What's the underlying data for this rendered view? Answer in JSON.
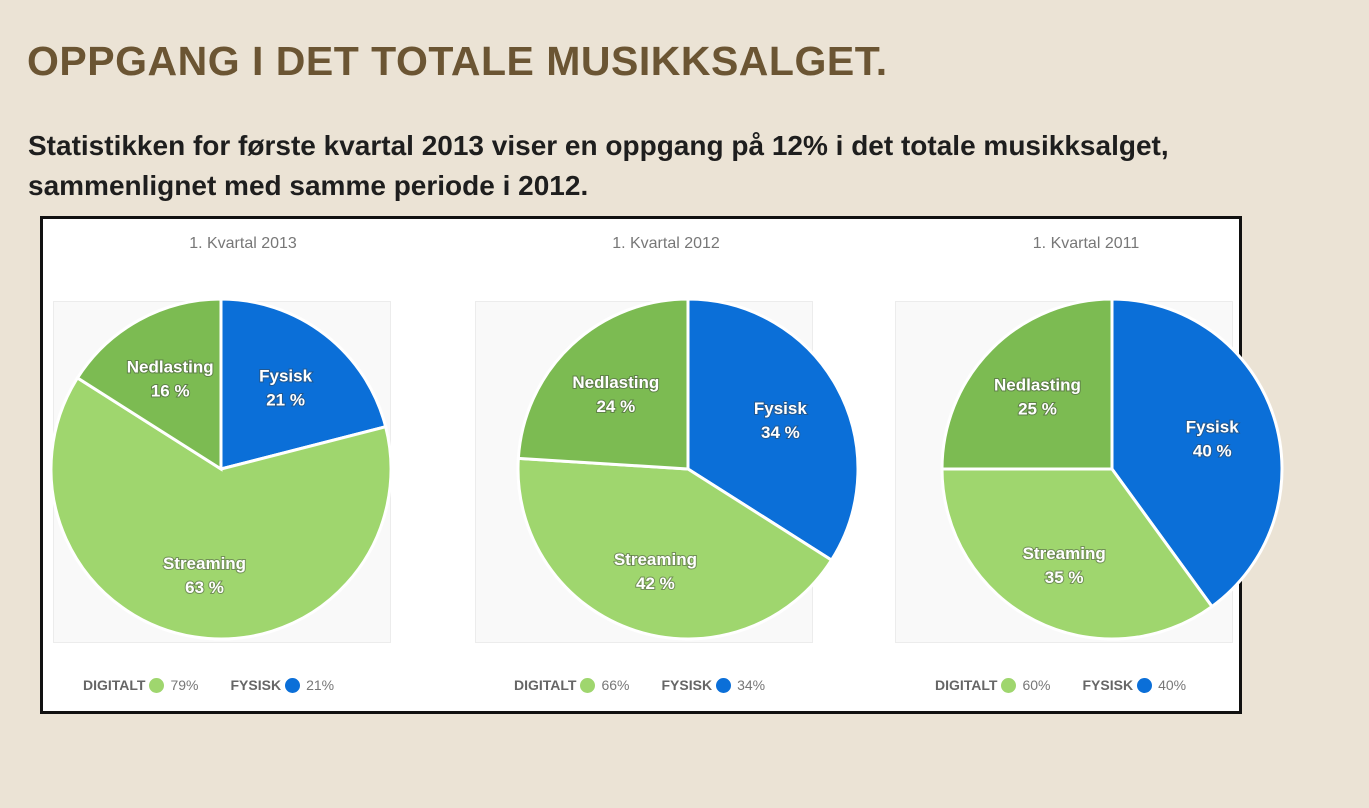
{
  "heading": "OPPGANG I DET TOTALE MUSIKKSALGET.",
  "intro": "Statistikken for første kvartal 2013 viser en oppgang på 12% i det totale musikksalget, sammenlignet med samme periode i 2012.",
  "colors": {
    "fysisk": "#0b6fd8",
    "streaming": "#9fd66e",
    "nedlasting": "#7cbb52"
  },
  "chart_data": [
    {
      "type": "pie",
      "title": "1. Kvartal 2013",
      "slices": [
        {
          "name": "Fysisk",
          "value": 21,
          "label": "21 %"
        },
        {
          "name": "Streaming",
          "value": 63,
          "label": "63 %"
        },
        {
          "name": "Nedlasting",
          "value": 16,
          "label": "16 %"
        }
      ],
      "legend": {
        "digital_label": "DIGITALT",
        "digital_value": "79%",
        "physical_label": "FYSISK",
        "physical_value": "21%"
      }
    },
    {
      "type": "pie",
      "title": "1. Kvartal 2012",
      "slices": [
        {
          "name": "Fysisk",
          "value": 34,
          "label": "34 %"
        },
        {
          "name": "Streaming",
          "value": 42,
          "label": "42 %"
        },
        {
          "name": "Nedlasting",
          "value": 24,
          "label": "24 %"
        }
      ],
      "legend": {
        "digital_label": "DIGITALT",
        "digital_value": "66%",
        "physical_label": "FYSISK",
        "physical_value": "34%"
      }
    },
    {
      "type": "pie",
      "title": "1. Kvartal 2011",
      "slices": [
        {
          "name": "Fysisk",
          "value": 40,
          "label": "40 %"
        },
        {
          "name": "Streaming",
          "value": 35,
          "label": "35 %"
        },
        {
          "name": "Nedlasting",
          "value": 25,
          "label": "25 %"
        }
      ],
      "legend": {
        "digital_label": "DIGITALT",
        "digital_value": "60%",
        "physical_label": "FYSISK",
        "physical_value": "40%"
      }
    }
  ]
}
